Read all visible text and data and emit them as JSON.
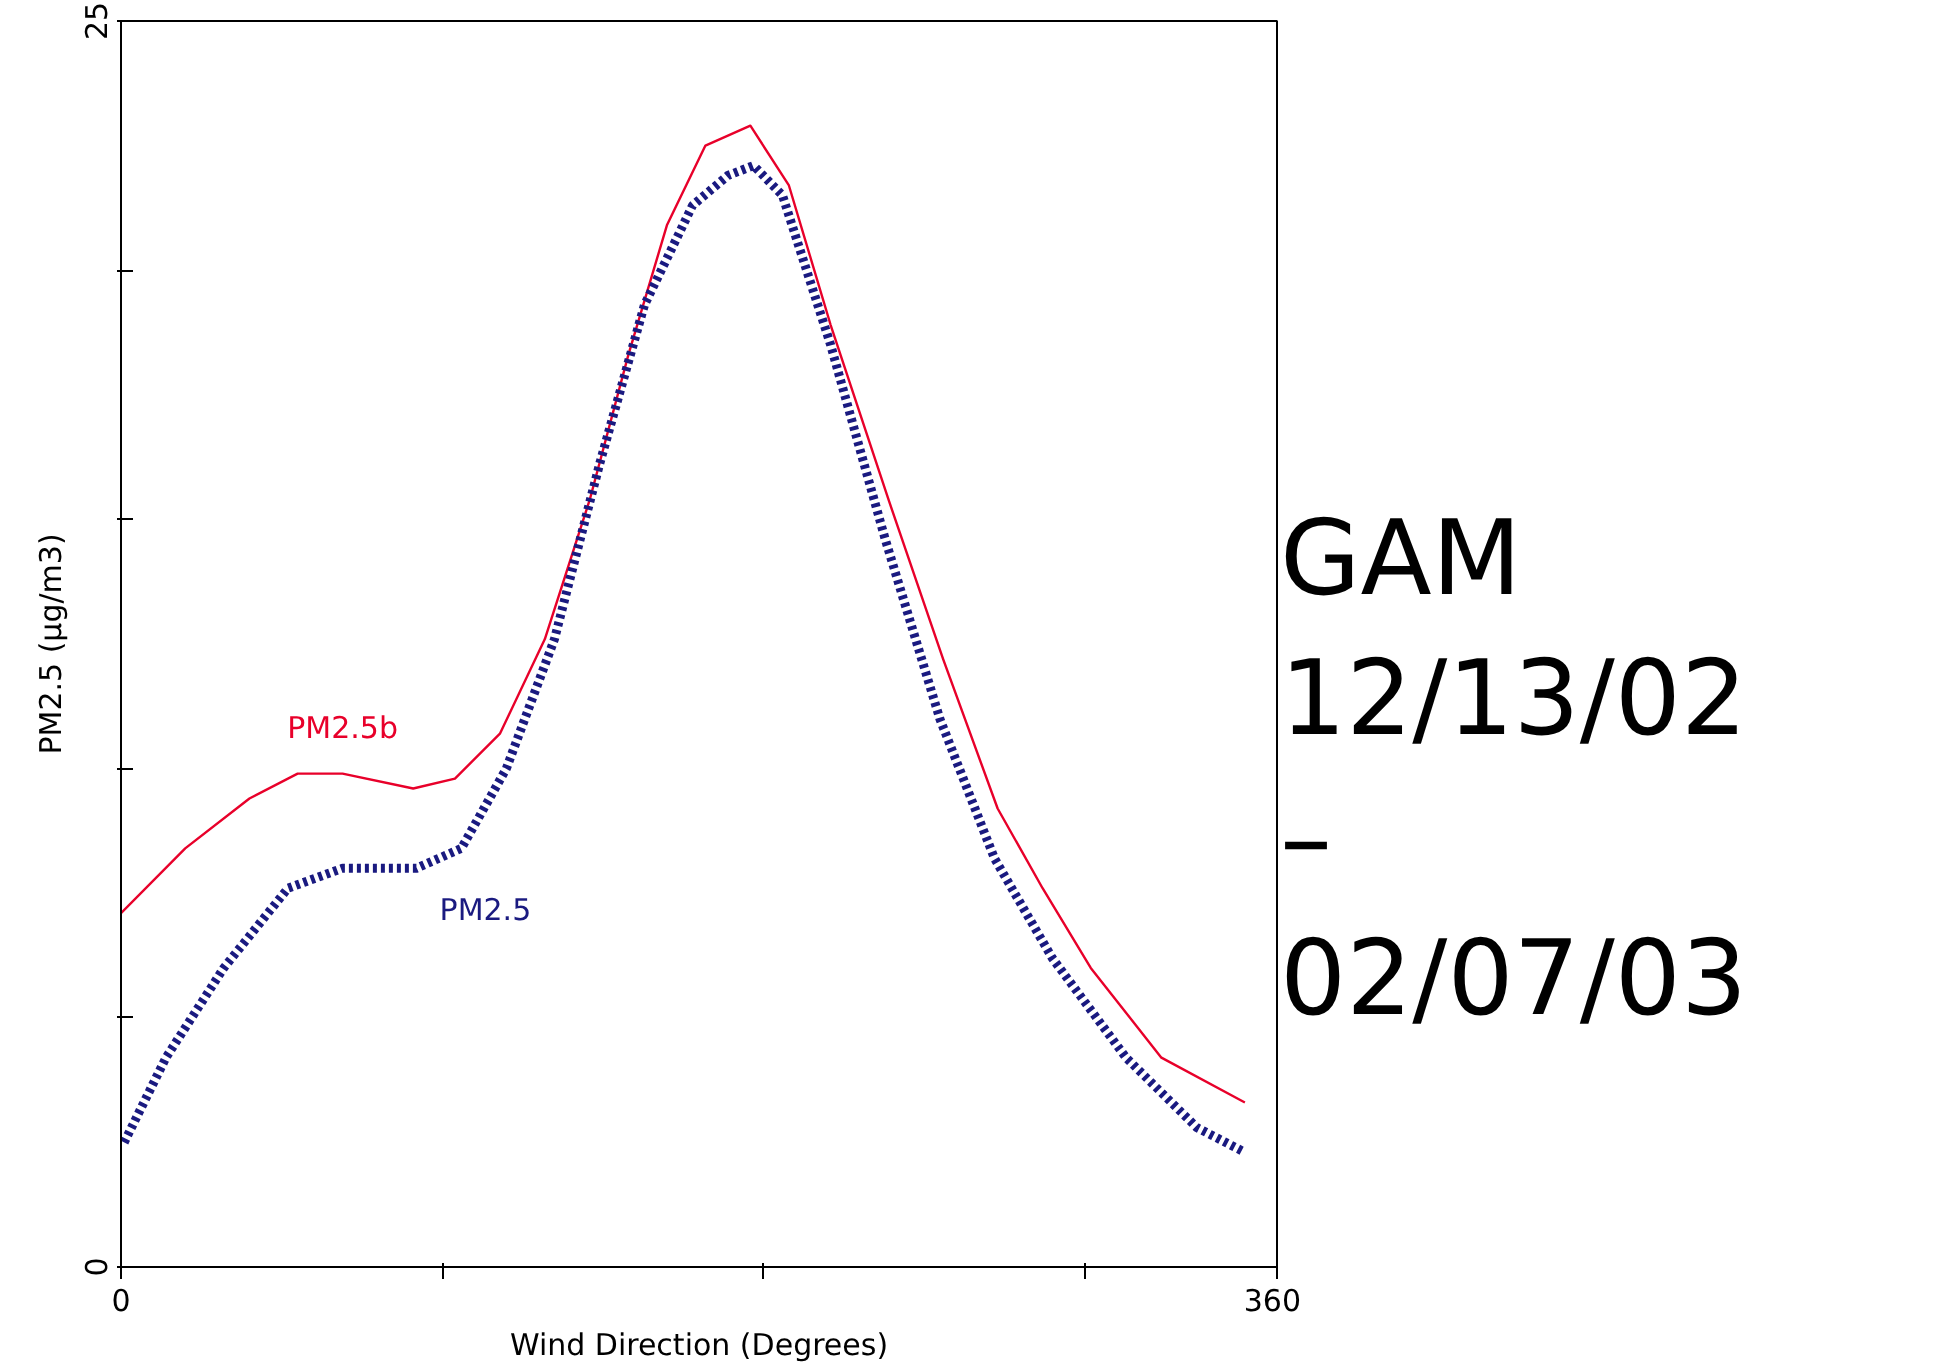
{
  "chart_data": {
    "type": "line",
    "xlabel": "Wind Direction (Degrees)",
    "ylabel": "PM2.5 (µg/m3)",
    "xlim": [
      0,
      360
    ],
    "xticks": [
      0,
      {
        "value": 100,
        "label": null
      },
      {
        "value": 200,
        "label": null
      },
      {
        "value": 300,
        "label": null
      },
      360
    ],
    "ylim": [
      0,
      25
    ],
    "yticks": [
      0,
      {
        "value": 5,
        "label": null
      },
      {
        "value": 10,
        "label": null
      },
      {
        "value": 15,
        "label": null
      },
      {
        "value": 20,
        "label": null
      },
      25
    ],
    "grid": false,
    "marker": "none",
    "series": [
      {
        "name": "PM2.5b",
        "color": "#e8002a",
        "line_style": "solid",
        "x": [
          0,
          20,
          40,
          55,
          69,
          91,
          104,
          118,
          132,
          146,
          158,
          170,
          182,
          196,
          208,
          221,
          239,
          256,
          273,
          287,
          302,
          324,
          350
        ],
        "values": [
          7.1,
          8.4,
          9.4,
          9.9,
          9.9,
          9.6,
          9.8,
          10.7,
          12.6,
          15.4,
          18.3,
          20.9,
          22.5,
          22.9,
          21.7,
          18.9,
          15.4,
          12.2,
          9.2,
          7.6,
          6.0,
          4.2,
          3.3
        ]
      },
      {
        "name": "PM2.5",
        "color": "#1a1a80",
        "line_style": "dotted",
        "x": [
          1,
          14,
          32,
          52,
          69,
          92,
          106,
          120,
          135,
          149,
          163,
          178,
          189,
          197,
          206,
          221,
          238,
          255,
          272,
          290,
          313,
          335,
          350
        ],
        "values": [
          2.5,
          4.2,
          6.0,
          7.6,
          8.0,
          8.0,
          8.4,
          10.0,
          12.6,
          16.1,
          19.3,
          21.3,
          21.9,
          22.1,
          21.5,
          18.5,
          14.6,
          11.0,
          8.2,
          6.2,
          4.2,
          2.8,
          2.3
        ]
      }
    ],
    "annotations": [
      "GAM 12/13/02 – 02/07/03"
    ]
  }
}
